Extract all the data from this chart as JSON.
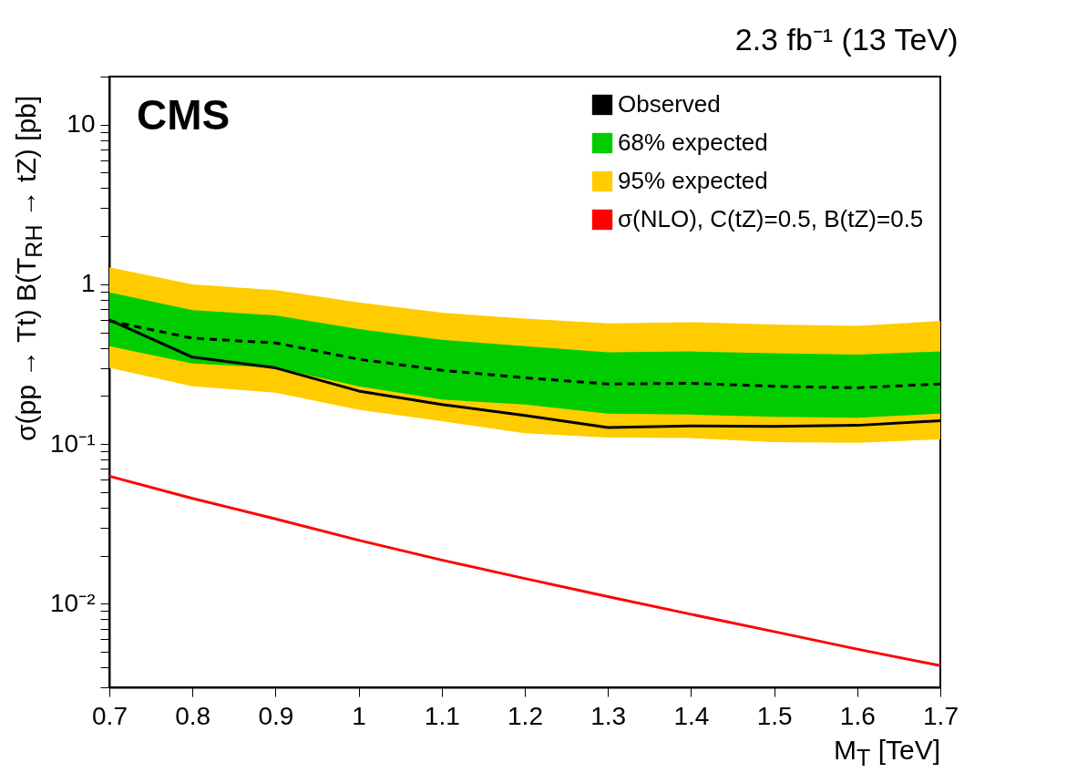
{
  "chart_data": {
    "type": "line",
    "title": "2.3 fb⁻¹ (13 TeV)",
    "xlabel": "M$_{T}$ [TeV]",
    "ylabel": "σ(pp → Tt) B(T$_{RH}$ → tZ) [pb]",
    "annotations": [
      "CMS"
    ],
    "x": [
      0.7,
      0.8,
      0.9,
      1.0,
      1.1,
      1.2,
      1.3,
      1.4,
      1.5,
      1.6,
      1.7
    ],
    "series": [
      {
        "name": "Observed",
        "color": "#000000",
        "line_style": "solid",
        "values": [
          0.6,
          0.35,
          0.3,
          0.215,
          0.177,
          0.151,
          0.127,
          0.13,
          0.129,
          0.131,
          0.14
        ]
      },
      {
        "name": "68% expected",
        "color": "#00cc00",
        "values": [
          null,
          null,
          null,
          null,
          null,
          null,
          null,
          null,
          null,
          null,
          null
        ],
        "lower": [
          0.41,
          0.32,
          0.3,
          0.23,
          0.19,
          0.177,
          0.155,
          0.153,
          0.148,
          0.146,
          0.155
        ],
        "upper": [
          0.89,
          0.69,
          0.64,
          0.525,
          0.45,
          0.41,
          0.376,
          0.38,
          0.37,
          0.363,
          0.38
        ]
      },
      {
        "name": "95% expected",
        "color": "#ffcc00",
        "values": [
          null,
          null,
          null,
          null,
          null,
          null,
          null,
          null,
          null,
          null,
          null
        ],
        "lower": [
          0.3,
          0.23,
          0.21,
          0.164,
          0.139,
          0.117,
          0.11,
          0.109,
          0.103,
          0.102,
          0.107
        ],
        "upper": [
          1.28,
          1.0,
          0.92,
          0.77,
          0.665,
          0.61,
          0.57,
          0.58,
          0.56,
          0.55,
          0.59
        ]
      },
      {
        "color": "#000000",
        "line_style": "dashed",
        "values": [
          0.59,
          0.46,
          0.43,
          0.34,
          0.29,
          0.26,
          0.238,
          0.24,
          0.23,
          0.225,
          0.238
        ]
      },
      {
        "name": "σ(NLO), C(tZ)=0.5, B(tZ)=0.5",
        "color": "#ff0000",
        "line_style": "solid",
        "values": [
          0.063,
          0.0457,
          0.034,
          0.025,
          0.0188,
          0.0144,
          0.0111,
          0.0086,
          0.0067,
          0.0052,
          0.0041
        ]
      }
    ],
    "log": "y",
    "grid": false,
    "legend": "top right",
    "marker": "none",
    "xlim": [
      0.7,
      1.7
    ],
    "xticks": [
      0.7,
      0.8,
      0.9,
      1,
      1.1,
      1.2,
      1.3,
      1.4,
      1.5,
      1.6,
      1.7
    ],
    "ylim": [
      0.003,
      20
    ],
    "yticks": [
      {
        "value": 0.003,
        "label": null
      },
      {
        "value": 0.004,
        "label": null
      },
      {
        "value": 0.005,
        "label": null
      },
      {
        "value": 0.006,
        "label": null
      },
      {
        "value": 0.007,
        "label": null
      },
      {
        "value": 0.008,
        "label": null
      },
      {
        "value": 0.009,
        "label": null
      },
      {
        "value": 0.01,
        "label": "10⁻²"
      },
      {
        "value": 0.02,
        "label": null
      },
      {
        "value": 0.03,
        "label": null
      },
      {
        "value": 0.04,
        "label": null
      },
      {
        "value": 0.05,
        "label": null
      },
      {
        "value": 0.06,
        "label": null
      },
      {
        "value": 0.07,
        "label": null
      },
      {
        "value": 0.08,
        "label": null
      },
      {
        "value": 0.09,
        "label": null
      },
      {
        "value": 0.1,
        "label": "10⁻¹"
      },
      {
        "value": 0.2,
        "label": null
      },
      {
        "value": 0.3,
        "label": null
      },
      {
        "value": 0.4,
        "label": null
      },
      {
        "value": 0.5,
        "label": null
      },
      {
        "value": 0.6,
        "label": null
      },
      {
        "value": 0.7,
        "label": null
      },
      {
        "value": 0.8,
        "label": null
      },
      {
        "value": 0.9,
        "label": null
      },
      1,
      {
        "value": 2,
        "label": null
      },
      {
        "value": 3,
        "label": null
      },
      {
        "value": 4,
        "label": null
      },
      {
        "value": 5,
        "label": null
      },
      {
        "value": 6,
        "label": null
      },
      {
        "value": 7,
        "label": null
      },
      {
        "value": 8,
        "label": null
      },
      {
        "value": 9,
        "label": null
      },
      10,
      {
        "value": 20,
        "label": null
      }
    ]
  }
}
